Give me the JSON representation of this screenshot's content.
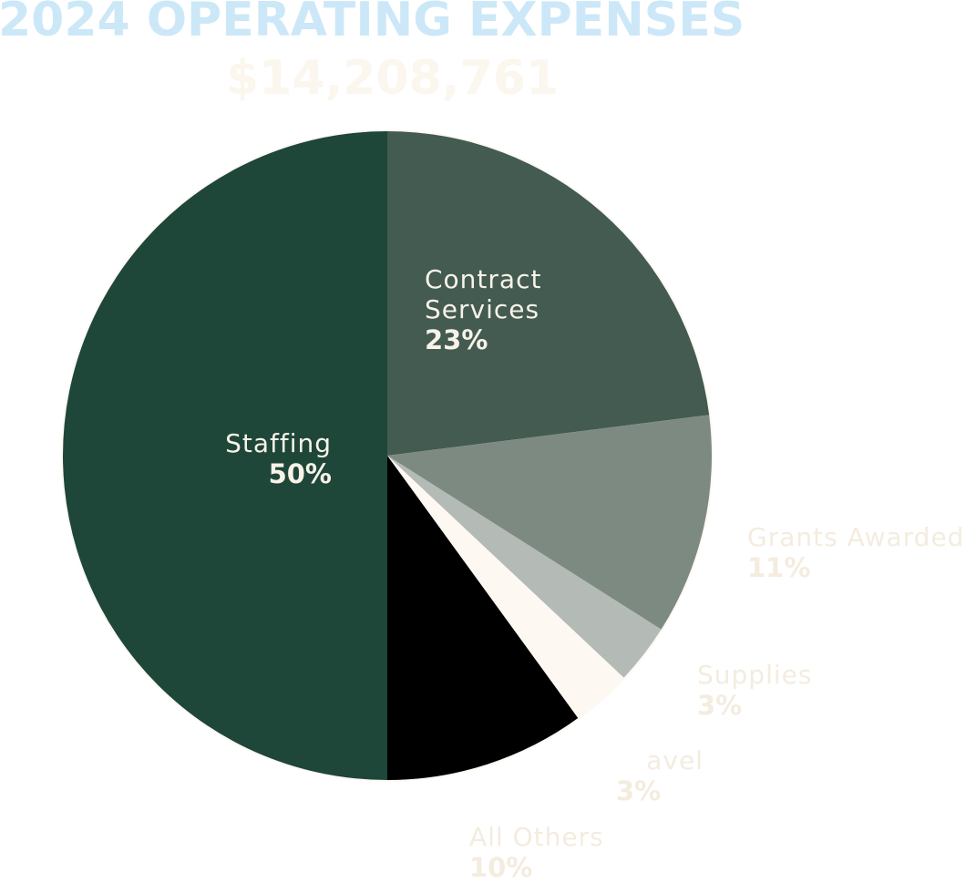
{
  "title": "2024 OPERATING EXPENSES",
  "total": "$14,208,761",
  "colors": {
    "title": "#cce8f8",
    "total": "#fbf6ee",
    "label_dark": "#f8f2e8",
    "label_light": "#f4ecdf",
    "pie_outline": "#fdf9f2"
  },
  "chart_data": {
    "type": "pie",
    "title": "2024 OPERATING EXPENSES",
    "subtitle": "$14,208,761",
    "slices": [
      {
        "label": "Staffing",
        "value": 50,
        "value_label": "50%",
        "color": "#1e4639"
      },
      {
        "label": "Contract Services",
        "value": 23,
        "value_label": "23%",
        "color": "#435b51"
      },
      {
        "label": "Grants Awarded",
        "value": 11,
        "value_label": "11%",
        "color": "#7d8a82"
      },
      {
        "label": "Supplies",
        "value": 3,
        "value_label": "3%",
        "color": "#b4bab5"
      },
      {
        "label": "avel",
        "value": 3,
        "value_label": "3%",
        "color": "#fdf8f1"
      },
      {
        "label": "All Others",
        "value": 10,
        "value_label": "10%",
        "color": "#000000"
      }
    ]
  }
}
